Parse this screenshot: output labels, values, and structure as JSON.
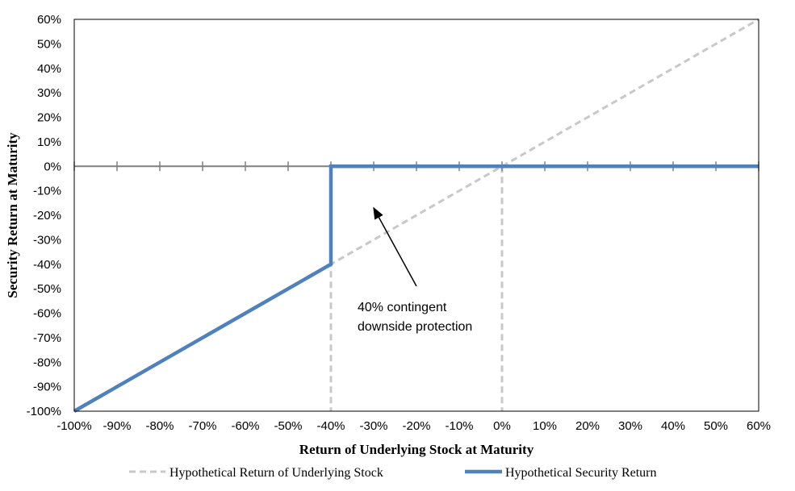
{
  "chart_data": {
    "type": "line",
    "xlabel": "Return of Underlying Stock at Maturity",
    "ylabel": "Security Return at Maturity",
    "xlim": [
      -100,
      60
    ],
    "ylim": [
      -100,
      60
    ],
    "x_ticks": [
      -100,
      -90,
      -80,
      -70,
      -60,
      -50,
      -40,
      -30,
      -20,
      -10,
      0,
      10,
      20,
      30,
      40,
      50,
      60
    ],
    "y_ticks": [
      60,
      50,
      40,
      30,
      20,
      10,
      0,
      -10,
      -20,
      -30,
      -40,
      -50,
      -60,
      -70,
      -80,
      -90,
      -100
    ],
    "x_tick_labels": [
      "-100%",
      "-90%",
      "-80%",
      "-70%",
      "-60%",
      "-50%",
      "-40%",
      "-30%",
      "-20%",
      "-10%",
      "0%",
      "10%",
      "20%",
      "30%",
      "40%",
      "50%",
      "60%"
    ],
    "y_tick_labels": [
      "60%",
      "50%",
      "40%",
      "30%",
      "20%",
      "10%",
      "0%",
      "-10%",
      "-20%",
      "-30%",
      "-40%",
      "-50%",
      "-60%",
      "-70%",
      "-80%",
      "-90%",
      "-100%"
    ],
    "series": [
      {
        "name": "Hypothetical Return of Underlying Stock",
        "style": "dashed",
        "color": "#C8C8C8",
        "x": [
          -100,
          60
        ],
        "y": [
          -100,
          60
        ]
      },
      {
        "name": "Hypothetical Security Return",
        "style": "solid",
        "color": "#4F81BD",
        "x": [
          -100,
          -40,
          -40,
          60
        ],
        "y": [
          -100,
          -40,
          0,
          0
        ]
      }
    ],
    "reference_lines": [
      {
        "axis": "x",
        "value": -40,
        "style": "dashed",
        "color": "#C8C8C8"
      },
      {
        "axis": "x",
        "value": 0,
        "style": "dashed",
        "color": "#C8C8C8"
      }
    ],
    "annotation": {
      "lines": [
        "40% contingent",
        "downside protection"
      ],
      "arrow_to": [
        -30,
        -17
      ]
    },
    "legend_position": "bottom",
    "grid": false
  }
}
